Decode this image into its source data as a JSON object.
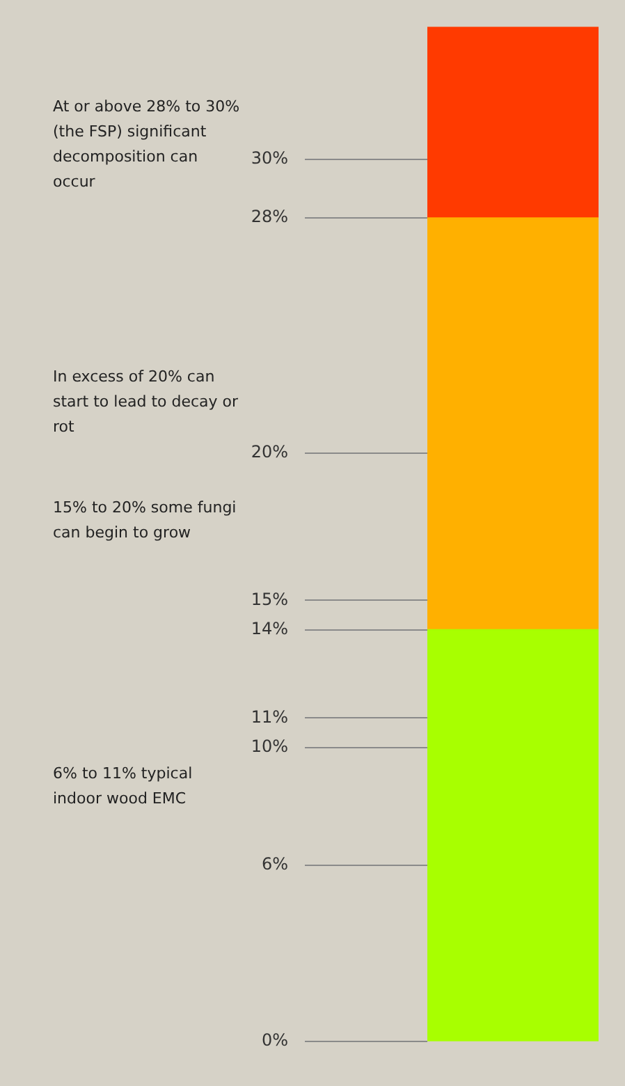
{
  "chart_data": {
    "type": "bar",
    "stacked": true,
    "categories": [
      null
    ],
    "tick_labels": "y",
    "series": [
      {
        "color": "#a8ff00",
        "values": [
          14
        ]
      },
      {
        "color": "#ffb000",
        "values": [
          14
        ]
      },
      {
        "color": "#ff3a00",
        "values": [
          6.5
        ]
      }
    ],
    "ylim": [
      0,
      34.5
    ],
    "yticks": [
      {
        "value": 0,
        "label": "0%"
      },
      {
        "value": 6,
        "label": "6%"
      },
      {
        "value": 10,
        "label": "10%"
      },
      {
        "value": 11,
        "label": "11%"
      },
      {
        "value": 14,
        "label": "14%"
      },
      {
        "value": 15,
        "label": "15%"
      },
      {
        "value": 20,
        "label": "20%"
      },
      {
        "value": 28,
        "label": "28%"
      },
      {
        "value": 30,
        "label": "30%"
      }
    ],
    "annotations": [
      "At or above 28% to 30% (the FSP) significant decomposition can occur",
      "In excess of 20% can start to lead to decay or rot",
      "15% to 20% some fungi can begin to grow",
      "6% to 11% typical indoor wood EMC"
    ]
  }
}
